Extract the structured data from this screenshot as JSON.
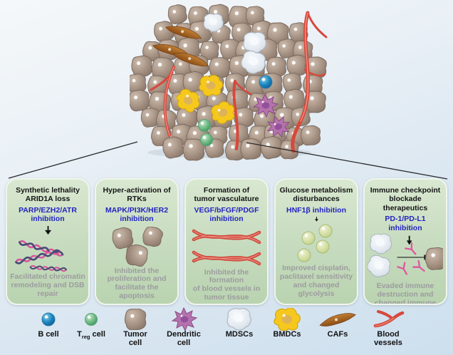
{
  "panels": [
    {
      "title": "Synthetic lethality\nARID1A loss",
      "inhibitor": "PARP/EZH2/ATR\ninhibition",
      "caption": "Facilitated chromatin\nremodeling and DSB\nrepair",
      "illustration": "dna-double-helix"
    },
    {
      "title": "Hyper-activation of\nRTKs",
      "inhibitor": "MAPK/PI3K/HER2\ninhibition",
      "caption": "Inhibited the\nproliferation and\nfacilitate the apoptosis",
      "illustration": "tumor-cells"
    },
    {
      "title": "Formation of\ntumor vasculature",
      "inhibitor": "VEGF/bFGF/PDGF\ninhibition",
      "caption": "Inhibited the formation\nof blood vessels in\ntumor tissue",
      "illustration": "blood-vessels"
    },
    {
      "title": "Glucose metabolism\ndisturbances",
      "inhibitor": "HNF1β inhibition",
      "caption": "Improved cisplatin,\npaclitaxel sensitivity\nand changed glycolysis",
      "illustration": "glucose-molecules"
    },
    {
      "title": "Immune checkpoint\nblockade therapeutics",
      "inhibitor": "PD-1/PD-L1\ninhibition",
      "caption": "Evaded immune\ndestruction and\nchanged immune\nmicroenvironment",
      "illustration": "immune-cells-antibodies-tumor-cell"
    }
  ],
  "legend": {
    "items": [
      {
        "label": "B cell",
        "icon": "b-cell-icon"
      },
      {
        "label_pre": "T",
        "label_sub": "reg",
        "label_post": " cell",
        "icon": "treg-cell-icon"
      },
      {
        "label": "Tumor\ncell",
        "icon": "tumor-cell-icon"
      },
      {
        "label": "Dendritic\ncell",
        "icon": "dendritic-cell-icon"
      },
      {
        "label": "MDSCs",
        "icon": "mdsc-icon"
      },
      {
        "label": "BMDCs",
        "icon": "bmdc-icon"
      },
      {
        "label": "CAFs",
        "icon": "caf-icon"
      },
      {
        "label": "Blood\nvessels",
        "icon": "blood-vessels-icon"
      }
    ]
  },
  "colors": {
    "inhibitor_blue": "#2323c0",
    "caption_gray": "#9c9c9e",
    "panel_green_top": "#d9e8d1",
    "panel_green_bottom": "#b9d3b0",
    "tumor_cell_tan": "#ab9889",
    "vessel_red": "#d6493c",
    "bmdc_yellow": "#f6c81e",
    "dendritic_purple": "#b573ae",
    "treg_green": "#74bd88",
    "bcell_blue": "#2089c1",
    "caf_brown": "#a4662b",
    "mdsc_light": "#e9eef3",
    "antibody_pink": "#e0559f",
    "dna_pink": "#d8569b",
    "dna_dark": "#474a75"
  }
}
